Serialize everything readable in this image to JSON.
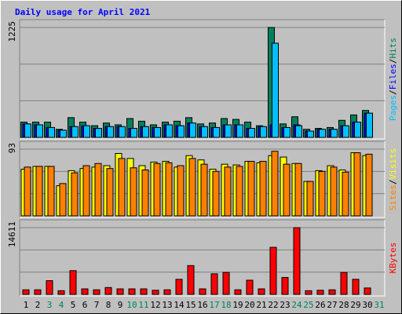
{
  "chart_data": {
    "type": "bar",
    "title": "Daily usage for April 2021",
    "categories": [
      "1",
      "2",
      "3",
      "4",
      "5",
      "6",
      "7",
      "8",
      "9",
      "10",
      "11",
      "12",
      "13",
      "14",
      "15",
      "16",
      "17",
      "18",
      "19",
      "20",
      "21",
      "22",
      "23",
      "24",
      "25",
      "26",
      "27",
      "28",
      "29",
      "30",
      "31"
    ],
    "category_colors": [
      "#000000",
      "#000000",
      "#00805c",
      "#00805c",
      "#000000",
      "#000000",
      "#000000",
      "#000000",
      "#000000",
      "#00805c",
      "#00805c",
      "#000000",
      "#000000",
      "#000000",
      "#000000",
      "#000000",
      "#00805c",
      "#00805c",
      "#000000",
      "#000000",
      "#000000",
      "#000000",
      "#000000",
      "#00805c",
      "#00805c",
      "#000000",
      "#000000",
      "#000000",
      "#000000",
      "#000000",
      "#00805c"
    ],
    "separator": "/",
    "panels": [
      {
        "ylim": [
          0,
          1225
        ],
        "yticks": [
          1225
        ],
        "series": [
          {
            "name": "Hits",
            "color": "#00805c",
            "values": [
              170,
              170,
              170,
              90,
              220,
              170,
              130,
              160,
              140,
              210,
              180,
              140,
              170,
              180,
              220,
              150,
              160,
              210,
              200,
              170,
              130,
              1225,
              150,
              230,
              90,
              100,
              110,
              190,
              250,
              300,
              0
            ]
          },
          {
            "name": "Files",
            "color": "#0000ff",
            "values": [
              150,
              140,
              110,
              80,
              120,
              130,
              100,
              120,
              120,
              100,
              120,
              110,
              140,
              130,
              160,
              120,
              110,
              140,
              140,
              100,
              120,
              140,
              110,
              140,
              70,
              90,
              90,
              130,
              170,
              270,
              0
            ]
          },
          {
            "name": "Pages",
            "color": "#00c0ff",
            "values": [
              150,
              140,
              110,
              80,
              120,
              130,
              100,
              120,
              120,
              100,
              120,
              110,
              140,
              130,
              160,
              120,
              110,
              140,
              140,
              100,
              120,
              1050,
              110,
              130,
              70,
              90,
              90,
              130,
              170,
              270,
              0
            ]
          }
        ]
      },
      {
        "ylim": [
          0,
          93
        ],
        "yticks": [
          93
        ],
        "series": [
          {
            "name": "Visits",
            "color": "#ffff00",
            "values": [
              65,
              69,
              69,
              42,
              63,
              66,
              68,
              70,
              87,
              80,
              70,
              75,
              76,
              68,
              84,
              78,
              65,
              72,
              71,
              76,
              74,
              84,
              82,
              73,
              48,
              63,
              70,
              64,
              88,
              84,
              0
            ]
          },
          {
            "name": "Sites",
            "color": "#ff8000",
            "values": [
              68,
              69,
              69,
              45,
              60,
              70,
              73,
              66,
              80,
              67,
              64,
              73,
              74,
              70,
              80,
              72,
              62,
              68,
              69,
              76,
              76,
              90,
              72,
              73,
              48,
              62,
              68,
              61,
              88,
              86,
              0
            ]
          }
        ]
      },
      {
        "ylim": [
          0,
          14611
        ],
        "yticks": [
          14611
        ],
        "series": [
          {
            "name": "KBytes",
            "color": "#ff0000",
            "values": [
              1000,
              1000,
              3000,
              800,
              5200,
              1200,
              1000,
              1500,
              1200,
              1200,
              1200,
              900,
              1000,
              3300,
              6300,
              1200,
              4500,
              4800,
              1000,
              3100,
              1200,
              10300,
              3700,
              14611,
              800,
              900,
              1000,
              4800,
              3300,
              1400,
              0
            ]
          }
        ]
      }
    ]
  }
}
